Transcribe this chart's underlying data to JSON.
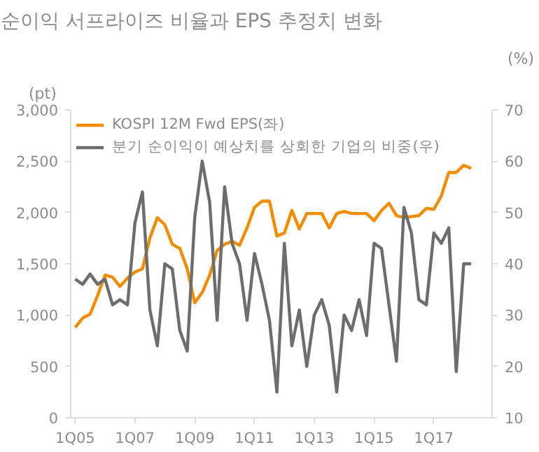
{
  "chart_data": {
    "type": "line",
    "title": "순이익 서프라이즈 비율과 EPS 추정치 변화",
    "ylabel": "(pt)",
    "y2label": "(%)",
    "categories": [
      "1Q05",
      null,
      null,
      null,
      null,
      null,
      null,
      null,
      "1Q07",
      null,
      null,
      null,
      null,
      null,
      null,
      null,
      "1Q09",
      null,
      null,
      null,
      null,
      null,
      null,
      null,
      "1Q11",
      null,
      null,
      null,
      null,
      null,
      null,
      null,
      "1Q13",
      null,
      null,
      null,
      null,
      null,
      null,
      null,
      "1Q15",
      null,
      null,
      null,
      null,
      null,
      null,
      null,
      "1Q17",
      null,
      null,
      null,
      null,
      null
    ],
    "ylim": [
      0,
      3000
    ],
    "yticks": [
      {
        "value": 0,
        "label": "0"
      },
      {
        "value": 500,
        "label": "500"
      },
      {
        "value": 1000,
        "label": "1,000"
      },
      {
        "value": 1500,
        "label": "1,500"
      },
      {
        "value": 2000,
        "label": "2,000"
      },
      {
        "value": 2500,
        "label": "2,500"
      },
      {
        "value": 3000,
        "label": "3,000"
      }
    ],
    "y2lim": [
      10,
      70
    ],
    "y2ticks": [
      10,
      20,
      30,
      40,
      50,
      60,
      70
    ],
    "legend": "top left",
    "grid": false,
    "marker": "none",
    "line_style": "solid",
    "series": [
      {
        "name": "KOSPI 12M Fwd EPS(좌)",
        "color": "#f28c00",
        "values": [
          880,
          970,
          1010,
          1190,
          1390,
          1370,
          1280,
          1360,
          1420,
          1450,
          1750,
          1950,
          1880,
          1690,
          1650,
          1450,
          1120,
          1220,
          1390,
          1630,
          1690,
          1720,
          1680,
          1850,
          2050,
          2110,
          2110,
          1770,
          1800,
          2020,
          1840,
          1990,
          1990,
          1990,
          1850,
          1990,
          2010,
          1990,
          1990,
          1990,
          1920,
          2020,
          2090,
          1970,
          1950,
          1960,
          1970,
          2040,
          2030,
          2160,
          2390,
          2390,
          2460,
          2430
        ]
      },
      {
        "name": "분기 순이익이 예상치를 상회한 기업의 비중(우)",
        "color": "#6d6d6d",
        "axis": "y2",
        "values": [
          37,
          36,
          38,
          36,
          37,
          32,
          33,
          32,
          48,
          54,
          31,
          24,
          40,
          39,
          27,
          23,
          49,
          60,
          52,
          29,
          55,
          44,
          40,
          29,
          42,
          36,
          29,
          15,
          44,
          24,
          31,
          20,
          30,
          33,
          28,
          15,
          30,
          27,
          33,
          26,
          44,
          43,
          32,
          21,
          51,
          46,
          33,
          32,
          46,
          44,
          47,
          19,
          40,
          40
        ]
      }
    ]
  }
}
